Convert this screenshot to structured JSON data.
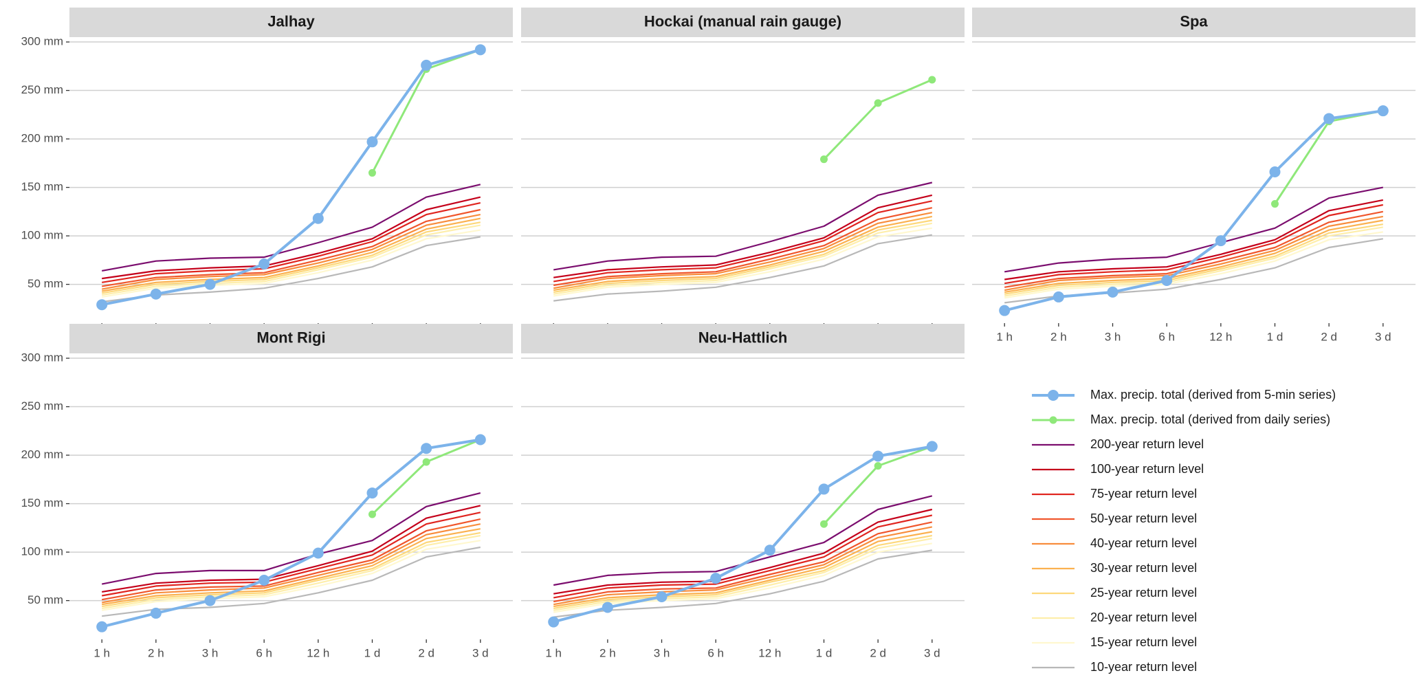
{
  "chart_data": [
    {
      "type": "line",
      "title": "Jalhay",
      "legend": "bottom-right",
      "grid": true,
      "categories": [
        "1 h",
        "2 h",
        "3 h",
        "6 h",
        "12 h",
        "1 d",
        "2 d",
        "3 d"
      ],
      "ylim": [
        10,
        305
      ],
      "yticks": [
        {
          "value": 50,
          "label": "50 mm"
        },
        {
          "value": 100,
          "label": "100 mm"
        },
        {
          "value": 150,
          "label": "150 mm"
        },
        {
          "value": 200,
          "label": "200 mm"
        },
        {
          "value": 250,
          "label": "250 mm"
        },
        {
          "value": 300,
          "label": "300 mm"
        }
      ],
      "series": [
        {
          "name": "Max. precip. total (derived from 5-min series)",
          "color": "#7cb3ea",
          "marker": "large",
          "values": [
            29,
            40,
            50,
            71,
            118,
            197,
            276,
            292
          ]
        },
        {
          "name": "Max. precip. total (derived from daily series)",
          "color": "#8fe87a",
          "marker": "small",
          "values": [
            null,
            null,
            null,
            null,
            null,
            165,
            272,
            292
          ]
        },
        {
          "name": "200-year return level",
          "color": "#7b0d6e",
          "values": [
            64,
            74,
            77,
            78,
            93,
            109,
            140,
            153
          ]
        },
        {
          "name": "100-year return level",
          "color": "#c4001a",
          "values": [
            56,
            64,
            67,
            69,
            82,
            97,
            127,
            140
          ]
        },
        {
          "name": "75-year return level",
          "color": "#e0251f",
          "values": [
            52,
            61,
            64,
            66,
            79,
            94,
            122,
            134
          ]
        },
        {
          "name": "50-year return level",
          "color": "#f0562c",
          "values": [
            48,
            57,
            60,
            62,
            75,
            89,
            115,
            127
          ]
        },
        {
          "name": "40-year return level",
          "color": "#f88d3c",
          "values": [
            45,
            55,
            58,
            60,
            72,
            86,
            111,
            122
          ]
        },
        {
          "name": "30-year return level",
          "color": "#fbb14f",
          "values": [
            43,
            52,
            55,
            57,
            69,
            83,
            107,
            118
          ]
        },
        {
          "name": "25-year return level",
          "color": "#fdd87b",
          "values": [
            41,
            50,
            53,
            55,
            67,
            80,
            104,
            114
          ]
        },
        {
          "name": "20-year return level",
          "color": "#feeeaa",
          "values": [
            39,
            48,
            51,
            53,
            65,
            78,
            101,
            111
          ]
        },
        {
          "name": "15-year return level",
          "color": "#fff8cf",
          "values": [
            37,
            46,
            49,
            51,
            62,
            75,
            97,
            106
          ]
        },
        {
          "name": "10-year return level",
          "color": "#b8b8b8",
          "values": [
            32,
            39,
            42,
            46,
            56,
            68,
            90,
            99
          ]
        }
      ]
    },
    {
      "type": "line",
      "title": "Hockai (manual rain gauge)",
      "grid": true,
      "categories": [
        "1 h",
        "2 h",
        "3 h",
        "6 h",
        "12 h",
        "1 d",
        "2 d",
        "3 d"
      ],
      "ylim": [
        10,
        305
      ],
      "yticks": [
        {
          "value": 50,
          "label": "50 mm"
        },
        {
          "value": 100,
          "label": "100 mm"
        },
        {
          "value": 150,
          "label": "150 mm"
        },
        {
          "value": 200,
          "label": "200 mm"
        },
        {
          "value": 250,
          "label": "250 mm"
        },
        {
          "value": 300,
          "label": "300 mm"
        }
      ],
      "series": [
        {
          "name": "Max. precip. total (derived from 5-min series)",
          "color": "#7cb3ea",
          "marker": "large",
          "values": [
            null,
            null,
            null,
            null,
            null,
            null,
            null,
            null
          ]
        },
        {
          "name": "Max. precip. total (derived from daily series)",
          "color": "#8fe87a",
          "marker": "small",
          "values": [
            null,
            null,
            null,
            null,
            null,
            179,
            237,
            261
          ]
        },
        {
          "name": "200-year return level",
          "color": "#7b0d6e",
          "values": [
            65,
            74,
            78,
            79,
            94,
            110,
            142,
            155
          ]
        },
        {
          "name": "100-year return level",
          "color": "#c4001a",
          "values": [
            57,
            65,
            68,
            70,
            83,
            98,
            129,
            142
          ]
        },
        {
          "name": "75-year return level",
          "color": "#e0251f",
          "values": [
            53,
            62,
            65,
            67,
            80,
            95,
            124,
            136
          ]
        },
        {
          "name": "50-year return level",
          "color": "#f0562c",
          "values": [
            49,
            58,
            61,
            63,
            76,
            90,
            117,
            129
          ]
        },
        {
          "name": "40-year return level",
          "color": "#f88d3c",
          "values": [
            46,
            56,
            59,
            61,
            73,
            87,
            113,
            124
          ]
        },
        {
          "name": "30-year return level",
          "color": "#fbb14f",
          "values": [
            44,
            53,
            56,
            58,
            70,
            84,
            109,
            120
          ]
        },
        {
          "name": "25-year return level",
          "color": "#fdd87b",
          "values": [
            42,
            51,
            54,
            56,
            68,
            81,
            106,
            116
          ]
        },
        {
          "name": "20-year return level",
          "color": "#feeeaa",
          "values": [
            40,
            49,
            52,
            54,
            66,
            79,
            103,
            113
          ]
        },
        {
          "name": "15-year return level",
          "color": "#fff8cf",
          "values": [
            38,
            47,
            50,
            52,
            63,
            76,
            99,
            108
          ]
        },
        {
          "name": "10-year return level",
          "color": "#b8b8b8",
          "values": [
            33,
            40,
            43,
            47,
            57,
            69,
            92,
            101
          ]
        }
      ]
    },
    {
      "type": "line",
      "title": "Spa",
      "grid": true,
      "categories": [
        "1 h",
        "2 h",
        "3 h",
        "6 h",
        "12 h",
        "1 d",
        "2 d",
        "3 d"
      ],
      "ylim": [
        10,
        305
      ],
      "yticks": [
        {
          "value": 50,
          "label": "50 mm"
        },
        {
          "value": 100,
          "label": "100 mm"
        },
        {
          "value": 150,
          "label": "150 mm"
        },
        {
          "value": 200,
          "label": "200 mm"
        },
        {
          "value": 250,
          "label": "250 mm"
        },
        {
          "value": 300,
          "label": "300 mm"
        }
      ],
      "series": [
        {
          "name": "Max. precip. total (derived from 5-min series)",
          "color": "#7cb3ea",
          "marker": "large",
          "values": [
            23,
            37,
            42,
            54,
            95,
            166,
            221,
            229
          ]
        },
        {
          "name": "Max. precip. total (derived from daily series)",
          "color": "#8fe87a",
          "marker": "small",
          "values": [
            null,
            null,
            null,
            null,
            null,
            133,
            218,
            229
          ]
        },
        {
          "name": "200-year return level",
          "color": "#7b0d6e",
          "values": [
            63,
            72,
            76,
            78,
            93,
            108,
            139,
            150
          ]
        },
        {
          "name": "100-year return level",
          "color": "#c4001a",
          "values": [
            55,
            63,
            66,
            68,
            81,
            96,
            126,
            137
          ]
        },
        {
          "name": "75-year return level",
          "color": "#e0251f",
          "values": [
            51,
            60,
            63,
            65,
            78,
            93,
            121,
            132
          ]
        },
        {
          "name": "50-year return level",
          "color": "#f0562c",
          "values": [
            47,
            56,
            59,
            61,
            74,
            88,
            114,
            125
          ]
        },
        {
          "name": "40-year return level",
          "color": "#f88d3c",
          "values": [
            44,
            54,
            57,
            59,
            71,
            85,
            110,
            120
          ]
        },
        {
          "name": "30-year return level",
          "color": "#fbb14f",
          "values": [
            42,
            51,
            54,
            56,
            68,
            82,
            106,
            116
          ]
        },
        {
          "name": "25-year return level",
          "color": "#fdd87b",
          "values": [
            40,
            49,
            52,
            54,
            66,
            79,
            103,
            112
          ]
        },
        {
          "name": "20-year return level",
          "color": "#feeeaa",
          "values": [
            38,
            47,
            50,
            52,
            64,
            77,
            100,
            109
          ]
        },
        {
          "name": "15-year return level",
          "color": "#fff8cf",
          "values": [
            36,
            45,
            48,
            50,
            61,
            74,
            96,
            104
          ]
        },
        {
          "name": "10-year return level",
          "color": "#b8b8b8",
          "values": [
            31,
            38,
            41,
            45,
            55,
            67,
            88,
            97
          ]
        }
      ]
    },
    {
      "type": "line",
      "title": "Mont Rigi",
      "grid": true,
      "categories": [
        "1 h",
        "2 h",
        "3 h",
        "6 h",
        "12 h",
        "1 d",
        "2 d",
        "3 d"
      ],
      "ylim": [
        10,
        305
      ],
      "yticks": [
        {
          "value": 50,
          "label": "50 mm"
        },
        {
          "value": 100,
          "label": "100 mm"
        },
        {
          "value": 150,
          "label": "150 mm"
        },
        {
          "value": 200,
          "label": "200 mm"
        },
        {
          "value": 250,
          "label": "250 mm"
        },
        {
          "value": 300,
          "label": "300 mm"
        }
      ],
      "series": [
        {
          "name": "Max. precip. total (derived from 5-min series)",
          "color": "#7cb3ea",
          "marker": "large",
          "values": [
            23,
            37,
            50,
            71,
            99,
            161,
            207,
            216
          ]
        },
        {
          "name": "Max. precip. total (derived from daily series)",
          "color": "#8fe87a",
          "marker": "small",
          "values": [
            null,
            null,
            null,
            null,
            null,
            139,
            193,
            216
          ]
        },
        {
          "name": "200-year return level",
          "color": "#7b0d6e",
          "values": [
            67,
            78,
            81,
            81,
            98,
            112,
            147,
            161
          ]
        },
        {
          "name": "100-year return level",
          "color": "#c4001a",
          "values": [
            59,
            68,
            71,
            72,
            86,
            101,
            135,
            148
          ]
        },
        {
          "name": "75-year return level",
          "color": "#e0251f",
          "values": [
            55,
            65,
            68,
            69,
            83,
            97,
            129,
            141
          ]
        },
        {
          "name": "50-year return level",
          "color": "#f0562c",
          "values": [
            51,
            61,
            64,
            65,
            79,
            92,
            122,
            134
          ]
        },
        {
          "name": "40-year return level",
          "color": "#f88d3c",
          "values": [
            48,
            58,
            61,
            63,
            76,
            89,
            118,
            129
          ]
        },
        {
          "name": "30-year return level",
          "color": "#fbb14f",
          "values": [
            46,
            55,
            58,
            60,
            73,
            86,
            114,
            124
          ]
        },
        {
          "name": "25-year return level",
          "color": "#fdd87b",
          "values": [
            44,
            53,
            56,
            58,
            71,
            83,
            110,
            120
          ]
        },
        {
          "name": "20-year return level",
          "color": "#feeeaa",
          "values": [
            42,
            51,
            54,
            56,
            68,
            81,
            107,
            117
          ]
        },
        {
          "name": "15-year return level",
          "color": "#fff8cf",
          "values": [
            40,
            49,
            52,
            54,
            65,
            78,
            103,
            112
          ]
        },
        {
          "name": "10-year return level",
          "color": "#b8b8b8",
          "values": [
            34,
            41,
            43,
            47,
            58,
            71,
            95,
            105
          ]
        }
      ]
    },
    {
      "type": "line",
      "title": "Neu-Hattlich",
      "grid": true,
      "categories": [
        "1 h",
        "2 h",
        "3 h",
        "6 h",
        "12 h",
        "1 d",
        "2 d",
        "3 d"
      ],
      "ylim": [
        10,
        305
      ],
      "yticks": [
        {
          "value": 50,
          "label": "50 mm"
        },
        {
          "value": 100,
          "label": "100 mm"
        },
        {
          "value": 150,
          "label": "150 mm"
        },
        {
          "value": 200,
          "label": "200 mm"
        },
        {
          "value": 250,
          "label": "250 mm"
        },
        {
          "value": 300,
          "label": "300 mm"
        }
      ],
      "series": [
        {
          "name": "Max. precip. total (derived from 5-min series)",
          "color": "#7cb3ea",
          "marker": "large",
          "values": [
            28,
            43,
            54,
            73,
            102,
            165,
            199,
            209
          ]
        },
        {
          "name": "Max. precip. total (derived from daily series)",
          "color": "#8fe87a",
          "marker": "small",
          "values": [
            null,
            null,
            null,
            null,
            null,
            129,
            189,
            209
          ]
        },
        {
          "name": "200-year return level",
          "color": "#7b0d6e",
          "values": [
            66,
            76,
            79,
            80,
            95,
            110,
            144,
            158
          ]
        },
        {
          "name": "100-year return level",
          "color": "#c4001a",
          "values": [
            57,
            66,
            69,
            70,
            84,
            99,
            131,
            144
          ]
        },
        {
          "name": "75-year return level",
          "color": "#e0251f",
          "values": [
            53,
            63,
            66,
            67,
            81,
            95,
            126,
            138
          ]
        },
        {
          "name": "50-year return level",
          "color": "#f0562c",
          "values": [
            49,
            59,
            62,
            63,
            77,
            90,
            119,
            131
          ]
        },
        {
          "name": "40-year return level",
          "color": "#f88d3c",
          "values": [
            46,
            56,
            59,
            61,
            74,
            87,
            115,
            126
          ]
        },
        {
          "name": "30-year return level",
          "color": "#fbb14f",
          "values": [
            44,
            53,
            56,
            58,
            71,
            84,
            111,
            121
          ]
        },
        {
          "name": "25-year return level",
          "color": "#fdd87b",
          "values": [
            42,
            51,
            54,
            56,
            69,
            81,
            107,
            117
          ]
        },
        {
          "name": "20-year return level",
          "color": "#feeeaa",
          "values": [
            40,
            49,
            52,
            54,
            66,
            79,
            104,
            114
          ]
        },
        {
          "name": "15-year return level",
          "color": "#fff8cf",
          "values": [
            38,
            47,
            50,
            52,
            63,
            76,
            100,
            109
          ]
        },
        {
          "name": "10-year return level",
          "color": "#b8b8b8",
          "values": [
            33,
            40,
            43,
            47,
            57,
            70,
            93,
            102
          ]
        }
      ]
    }
  ]
}
